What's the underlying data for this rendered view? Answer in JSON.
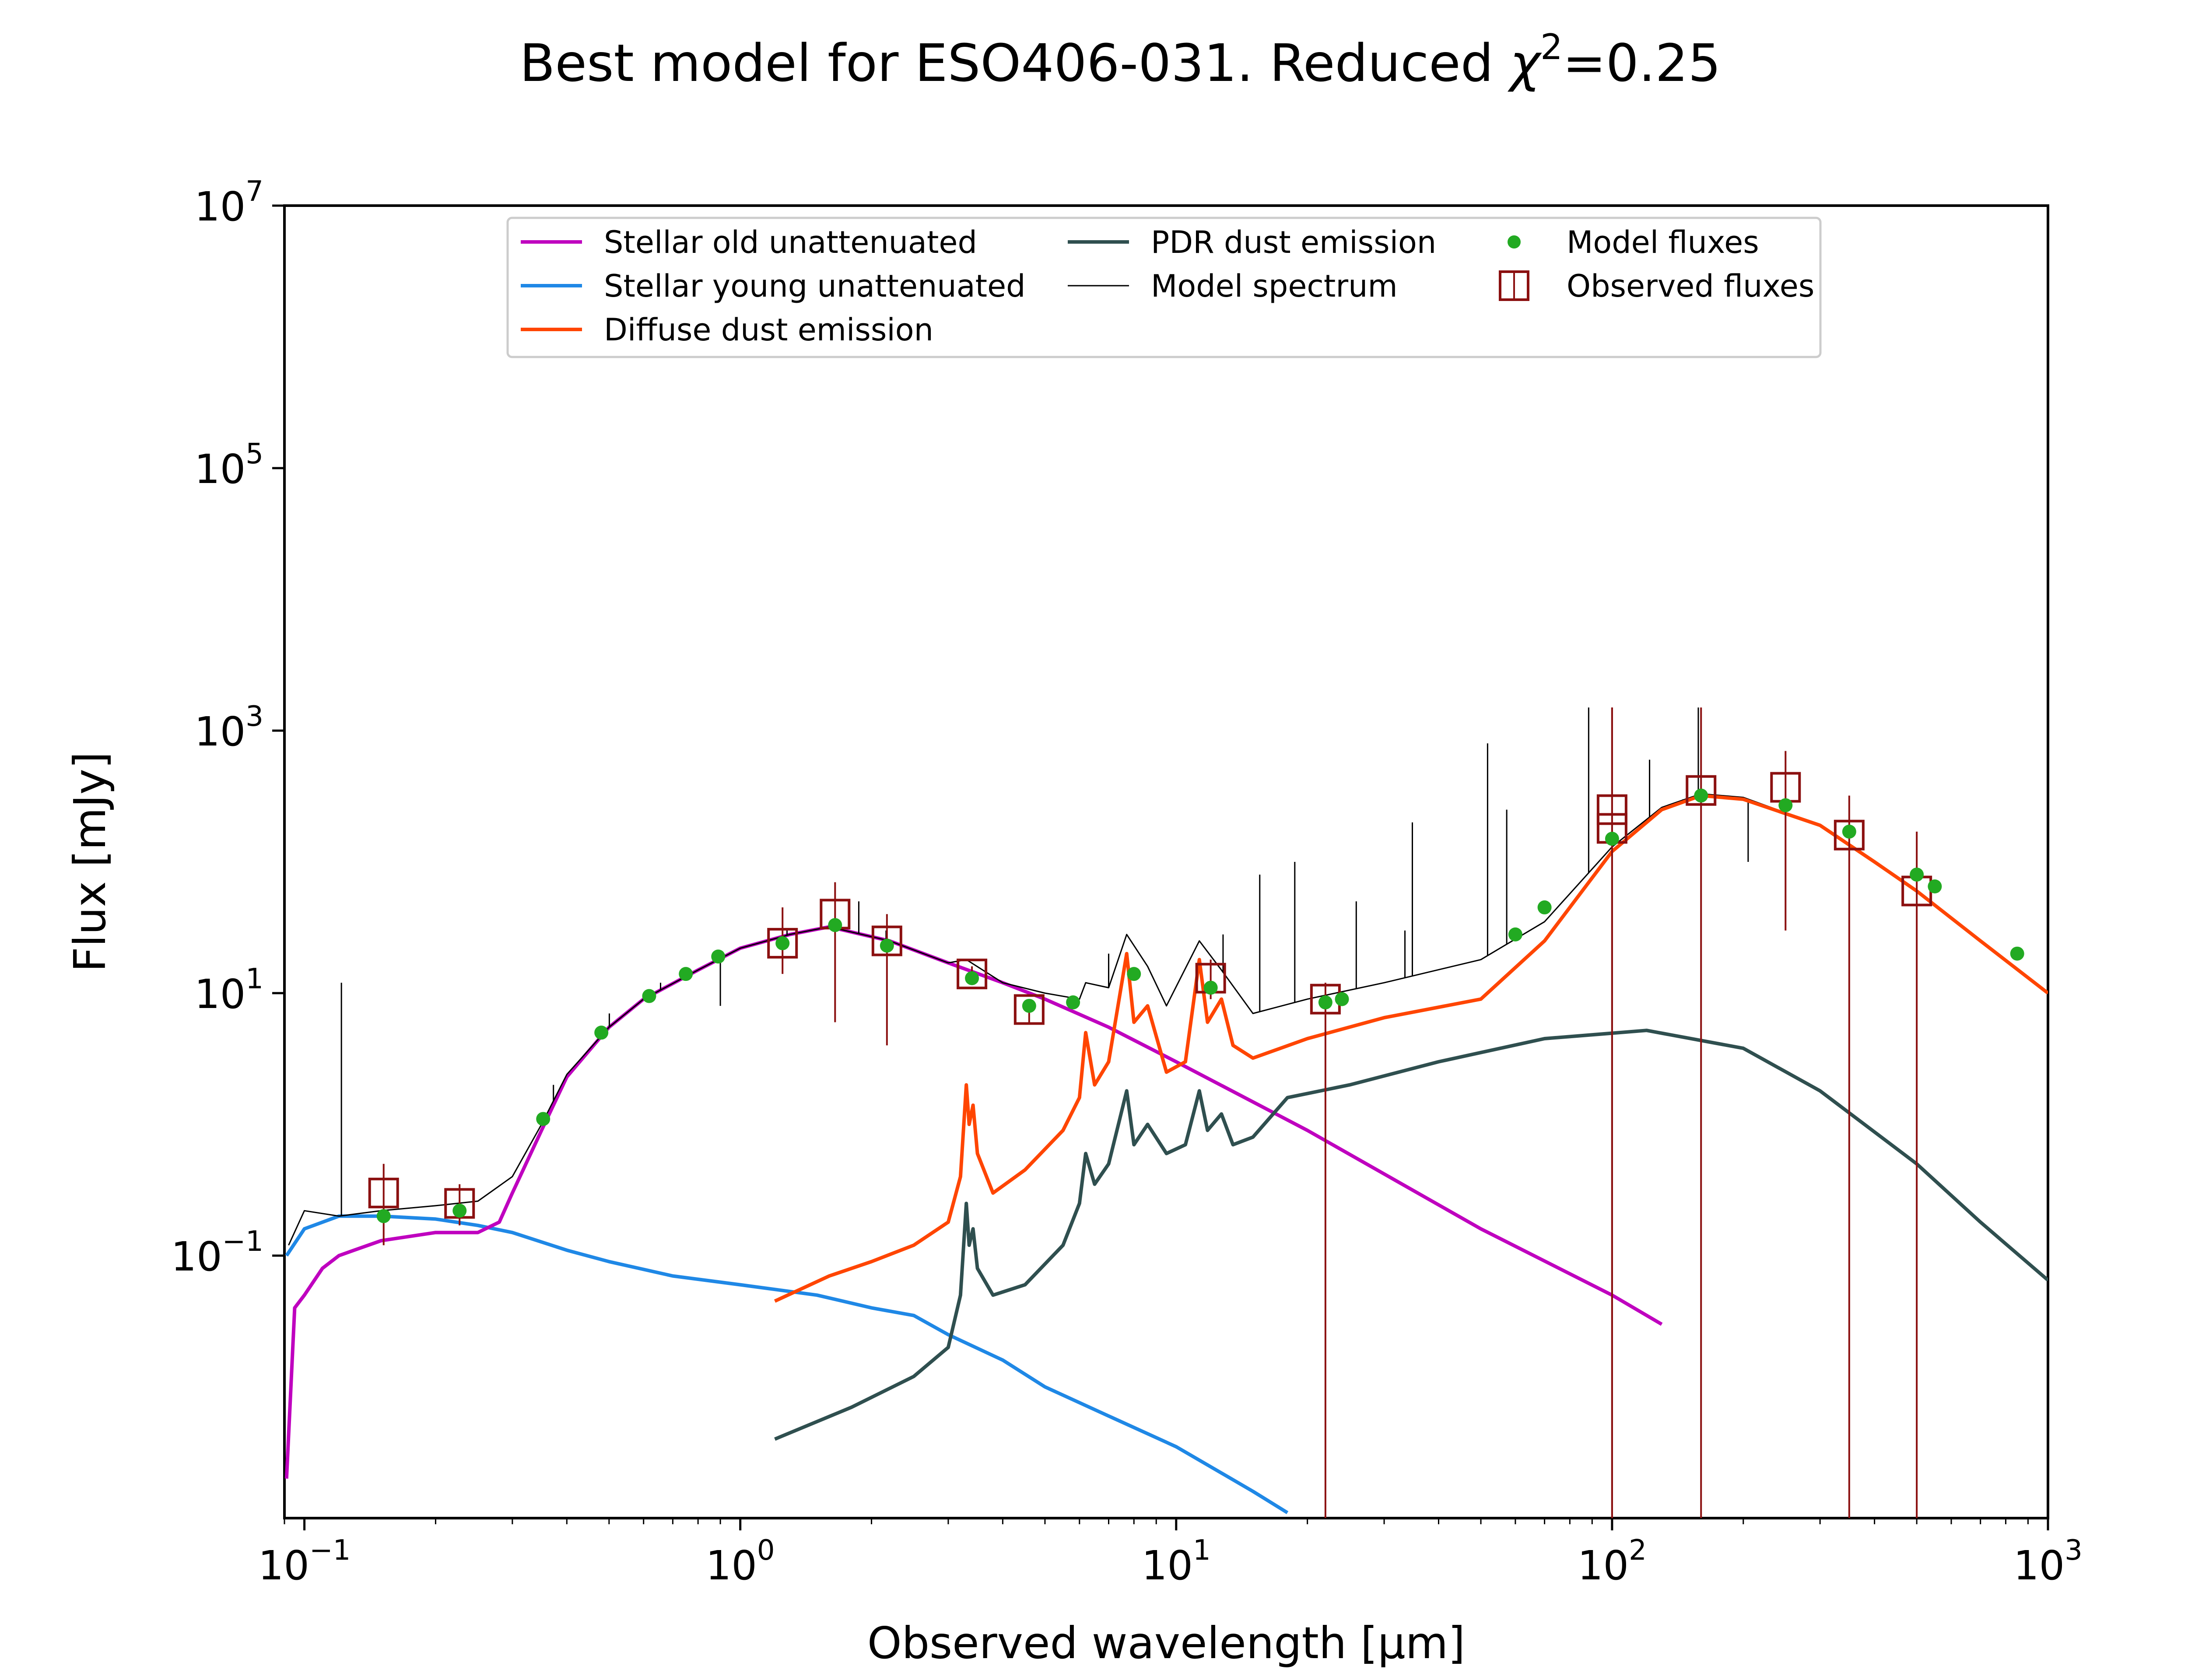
{
  "chart_data": {
    "type": "line",
    "title": "Best model for ESO406-031. Reduced χ²=0.25",
    "title_main": "Best model for ESO406-031. Reduced ",
    "title_chi": "χ",
    "title_sup": "2",
    "title_tail": "=0.25",
    "xlabel": "Observed wavelength [μm]",
    "ylabel": "Flux [mJy]",
    "x_scale": "log",
    "y_scale": "log",
    "xlim": [
      0.09,
      1000
    ],
    "ylim": [
      0.001,
      10000000
    ],
    "xticks": [
      {
        "value": 0.1,
        "base": "10",
        "exp": "−1"
      },
      {
        "value": 1,
        "base": "10",
        "exp": "0"
      },
      {
        "value": 10,
        "base": "10",
        "exp": "1"
      },
      {
        "value": 100,
        "base": "10",
        "exp": "2"
      },
      {
        "value": 1000,
        "base": "10",
        "exp": "3"
      }
    ],
    "yticks": [
      {
        "value": 0.1,
        "base": "10",
        "exp": "−1"
      },
      {
        "value": 10,
        "base": "10",
        "exp": "1"
      },
      {
        "value": 1000,
        "base": "10",
        "exp": "3"
      },
      {
        "value": 100000,
        "base": "10",
        "exp": "5"
      },
      {
        "value": 10000000,
        "base": "10",
        "exp": "7"
      }
    ],
    "grid": false,
    "legend_position": "upper-center",
    "series": [
      {
        "name": "Stellar old unattenuated",
        "color": "#bf00bf",
        "kind": "line",
        "points": [
          [
            0.091,
            0.002
          ],
          [
            0.095,
            0.04
          ],
          [
            0.1,
            0.05
          ],
          [
            0.11,
            0.08
          ],
          [
            0.12,
            0.1
          ],
          [
            0.13,
            0.11
          ],
          [
            0.15,
            0.13
          ],
          [
            0.2,
            0.15
          ],
          [
            0.25,
            0.15
          ],
          [
            0.28,
            0.18
          ],
          [
            0.3,
            0.3
          ],
          [
            0.35,
            0.9
          ],
          [
            0.4,
            2.3
          ],
          [
            0.5,
            5.5
          ],
          [
            0.6,
            9
          ],
          [
            0.8,
            15
          ],
          [
            1.0,
            22
          ],
          [
            1.3,
            28
          ],
          [
            1.6,
            32
          ],
          [
            2.2,
            25
          ],
          [
            3.0,
            17
          ],
          [
            4.0,
            12
          ],
          [
            5.0,
            9
          ],
          [
            7.0,
            5.5
          ],
          [
            10.0,
            3.0
          ],
          [
            20.0,
            0.9
          ],
          [
            50.0,
            0.16
          ],
          [
            100.0,
            0.05
          ],
          [
            130.0,
            0.03
          ]
        ]
      },
      {
        "name": "Stellar young unattenuated",
        "color": "#1f88e6",
        "kind": "line",
        "points": [
          [
            0.091,
            0.1
          ],
          [
            0.1,
            0.16
          ],
          [
            0.12,
            0.2
          ],
          [
            0.15,
            0.2
          ],
          [
            0.2,
            0.19
          ],
          [
            0.25,
            0.17
          ],
          [
            0.3,
            0.15
          ],
          [
            0.4,
            0.11
          ],
          [
            0.5,
            0.09
          ],
          [
            0.7,
            0.07
          ],
          [
            1.0,
            0.06
          ],
          [
            1.5,
            0.05
          ],
          [
            2.0,
            0.04
          ],
          [
            2.5,
            0.035
          ],
          [
            3.0,
            0.025
          ],
          [
            4.0,
            0.016
          ],
          [
            5.0,
            0.01
          ],
          [
            7.0,
            0.006
          ],
          [
            10.0,
            0.0035
          ],
          [
            15.0,
            0.0016
          ],
          [
            18.0,
            0.0011
          ]
        ]
      },
      {
        "name": "Diffuse dust emission",
        "color": "#ff4500",
        "kind": "line",
        "points": [
          [
            1.2,
            0.045
          ],
          [
            1.6,
            0.07
          ],
          [
            2.0,
            0.09
          ],
          [
            2.5,
            0.12
          ],
          [
            3.0,
            0.18
          ],
          [
            3.2,
            0.4
          ],
          [
            3.3,
            2.0
          ],
          [
            3.35,
            1.0
          ],
          [
            3.42,
            1.4
          ],
          [
            3.5,
            0.6
          ],
          [
            3.8,
            0.3
          ],
          [
            4.5,
            0.45
          ],
          [
            5.5,
            0.9
          ],
          [
            6.0,
            1.6
          ],
          [
            6.2,
            5.0
          ],
          [
            6.5,
            2.0
          ],
          [
            7.0,
            3.0
          ],
          [
            7.7,
            20.0
          ],
          [
            8.0,
            6.0
          ],
          [
            8.6,
            8.0
          ],
          [
            9.5,
            2.5
          ],
          [
            10.5,
            3.0
          ],
          [
            11.3,
            18.0
          ],
          [
            11.8,
            6.0
          ],
          [
            12.7,
            9.0
          ],
          [
            13.5,
            4.0
          ],
          [
            15.0,
            3.2
          ],
          [
            20.0,
            4.5
          ],
          [
            30.0,
            6.5
          ],
          [
            50.0,
            9.0
          ],
          [
            70.0,
            25.0
          ],
          [
            100.0,
            120.0
          ],
          [
            130.0,
            250.0
          ],
          [
            160.0,
            320.0
          ],
          [
            200.0,
            300.0
          ],
          [
            300.0,
            190.0
          ],
          [
            400.0,
            100.0
          ],
          [
            500.0,
            60.0
          ],
          [
            700.0,
            25.0
          ],
          [
            1000.0,
            10.0
          ]
        ]
      },
      {
        "name": "PDR dust emission",
        "color": "#2f4f4f",
        "kind": "line",
        "points": [
          [
            1.2,
            0.004
          ],
          [
            1.8,
            0.007
          ],
          [
            2.5,
            0.012
          ],
          [
            3.0,
            0.02
          ],
          [
            3.2,
            0.05
          ],
          [
            3.3,
            0.25
          ],
          [
            3.35,
            0.12
          ],
          [
            3.42,
            0.16
          ],
          [
            3.5,
            0.08
          ],
          [
            3.8,
            0.05
          ],
          [
            4.5,
            0.06
          ],
          [
            5.5,
            0.12
          ],
          [
            6.0,
            0.25
          ],
          [
            6.2,
            0.6
          ],
          [
            6.5,
            0.35
          ],
          [
            7.0,
            0.5
          ],
          [
            7.7,
            1.8
          ],
          [
            8.0,
            0.7
          ],
          [
            8.6,
            1.0
          ],
          [
            9.5,
            0.6
          ],
          [
            10.5,
            0.7
          ],
          [
            11.3,
            1.8
          ],
          [
            11.8,
            0.9
          ],
          [
            12.7,
            1.2
          ],
          [
            13.5,
            0.7
          ],
          [
            15.0,
            0.8
          ],
          [
            18.0,
            1.6
          ],
          [
            25.0,
            2.0
          ],
          [
            40.0,
            3.0
          ],
          [
            70.0,
            4.5
          ],
          [
            120.0,
            5.2
          ],
          [
            200.0,
            3.8
          ],
          [
            300.0,
            1.8
          ],
          [
            500.0,
            0.5
          ],
          [
            700.0,
            0.18
          ],
          [
            1000.0,
            0.065
          ]
        ]
      },
      {
        "name": "Model spectrum",
        "color": "#000000",
        "kind": "thin-line",
        "points": [
          [
            0.092,
            0.12
          ],
          [
            0.1,
            0.22
          ],
          [
            0.12,
            0.2
          ],
          [
            0.15,
            0.22
          ],
          [
            0.2,
            0.24
          ],
          [
            0.25,
            0.26
          ],
          [
            0.3,
            0.4
          ],
          [
            0.35,
            1.0
          ],
          [
            0.4,
            2.4
          ],
          [
            0.5,
            5.5
          ],
          [
            0.6,
            9
          ],
          [
            0.8,
            15
          ],
          [
            1.0,
            22
          ],
          [
            1.3,
            28
          ],
          [
            1.6,
            32
          ],
          [
            2.2,
            25
          ],
          [
            3.0,
            17
          ],
          [
            3.3,
            18
          ],
          [
            4.0,
            12
          ],
          [
            5.0,
            10
          ],
          [
            6.0,
            9
          ],
          [
            6.2,
            12
          ],
          [
            7.0,
            11
          ],
          [
            7.7,
            28
          ],
          [
            8.6,
            16
          ],
          [
            9.5,
            8
          ],
          [
            11.3,
            25
          ],
          [
            12.7,
            15
          ],
          [
            15.0,
            7
          ],
          [
            20.0,
            9
          ],
          [
            30.0,
            12
          ],
          [
            50.0,
            18
          ],
          [
            70.0,
            35
          ],
          [
            100.0,
            130
          ],
          [
            130.0,
            260
          ],
          [
            160.0,
            330
          ],
          [
            200.0,
            310
          ],
          [
            300.0,
            190
          ],
          [
            500.0,
            60
          ],
          [
            700.0,
            25
          ],
          [
            1000.0,
            10
          ]
        ],
        "emission_lines": [
          [
            0.1216,
            12
          ],
          [
            0.3727,
            2.0
          ],
          [
            0.5007,
            7
          ],
          [
            0.6563,
            12
          ],
          [
            0.9,
            8
          ],
          [
            1.28,
            30
          ],
          [
            1.87,
            50
          ],
          [
            2.16,
            30
          ],
          [
            7.0,
            20
          ],
          [
            12.81,
            28
          ],
          [
            15.55,
            80
          ],
          [
            18.71,
            100
          ],
          [
            25.89,
            50
          ],
          [
            33.48,
            30
          ],
          [
            34.82,
            200
          ],
          [
            51.81,
            800
          ],
          [
            57.32,
            250
          ],
          [
            88.36,
            1500
          ],
          [
            121.9,
            600
          ],
          [
            145.5,
            300
          ],
          [
            157.7,
            1500
          ],
          [
            205.2,
            100
          ]
        ]
      }
    ],
    "model_fluxes": {
      "name": "Model fluxes",
      "color": "#22aa22",
      "x": [
        0.152,
        0.227,
        0.353,
        0.48,
        0.618,
        0.75,
        0.89,
        1.25,
        1.65,
        2.17,
        3.4,
        4.6,
        5.8,
        8.0,
        12.0,
        22.0,
        24.0,
        60.0,
        70.0,
        100.0,
        160.0,
        250.0,
        350.0,
        500.0,
        550.0,
        850.0
      ],
      "y": [
        0.2,
        0.22,
        1.1,
        5.0,
        9.5,
        14.0,
        19.0,
        24.0,
        33.0,
        23.0,
        13.0,
        8.0,
        8.5,
        14.0,
        11.0,
        8.5,
        9.0,
        28.0,
        45.0,
        150.0,
        320.0,
        270.0,
        170.0,
        80.0,
        65.0,
        20.0
      ]
    },
    "observed_fluxes": {
      "name": "Observed fluxes",
      "color": "#8b1010",
      "x": [
        0.152,
        0.227,
        1.25,
        1.65,
        2.17,
        3.4,
        4.6,
        12.0,
        22.0,
        100.0,
        100.0,
        160.0,
        250.0,
        350.0,
        500.0
      ],
      "y": [
        0.3,
        0.25,
        24.0,
        40.0,
        25.0,
        14.0,
        7.5,
        13.0,
        9.0,
        250.0,
        180.0,
        350.0,
        370.0,
        160.0,
        60.0
      ],
      "yerr_low": [
        0.12,
        0.17,
        14.0,
        6.0,
        4.0,
        12.0,
        6.0,
        9.0,
        0.001,
        0.001,
        0.001,
        0.001,
        30.0,
        0.001,
        0.001
      ],
      "yerr_high": [
        0.5,
        0.35,
        45.0,
        70.0,
        40.0,
        16.0,
        9.0,
        18.0,
        12.0,
        1500.0,
        1500.0,
        1500.0,
        700.0,
        320.0,
        170.0
      ]
    }
  }
}
